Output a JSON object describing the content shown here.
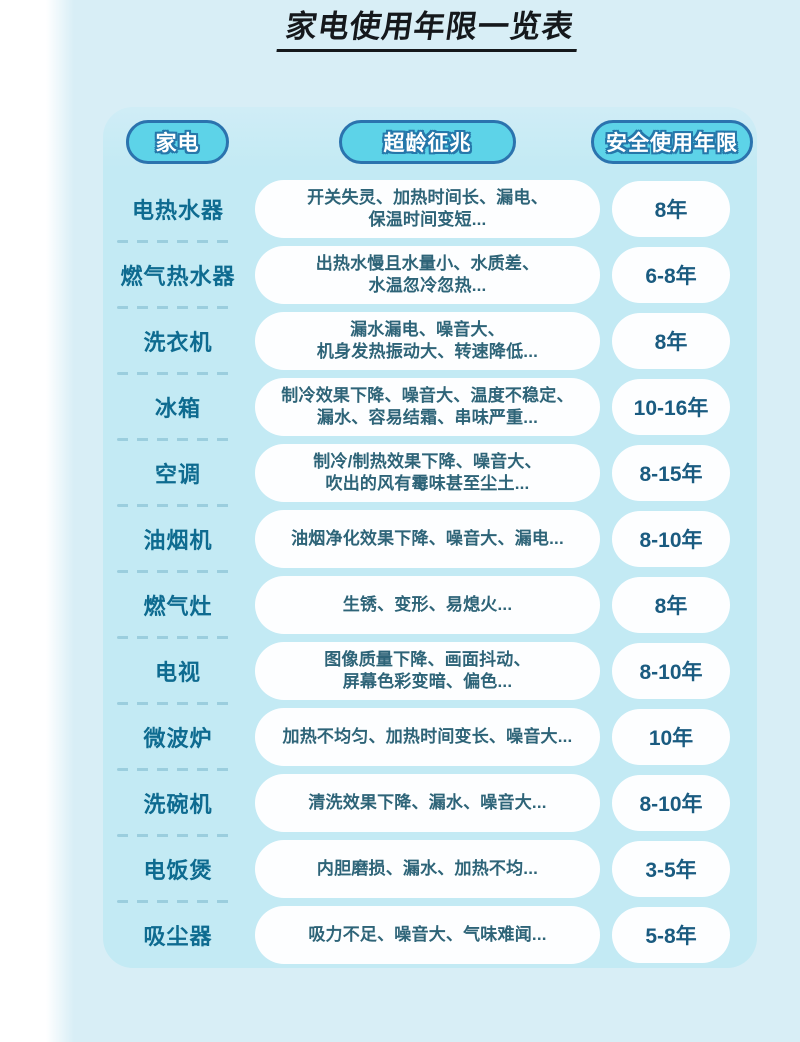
{
  "title": "家电使用年限一览表",
  "columns": {
    "appliance": "家电",
    "signs": "超龄征兆",
    "lifespan": "安全使用年限"
  },
  "rows": [
    {
      "name": "电热水器",
      "signs": "开关失灵、加热时间长、漏电、\n保温时间变短...",
      "years": "8年"
    },
    {
      "name": "燃气热水器",
      "signs": "出热水慢且水量小、水质差、\n水温忽冷忽热...",
      "years": "6-8年"
    },
    {
      "name": "洗衣机",
      "signs": "漏水漏电、噪音大、\n机身发热振动大、转速降低...",
      "years": "8年"
    },
    {
      "name": "冰箱",
      "signs": "制冷效果下降、噪音大、温度不稳定、\n漏水、容易结霜、串味严重...",
      "years": "10-16年"
    },
    {
      "name": "空调",
      "signs": "制冷/制热效果下降、噪音大、\n吹出的风有霉味甚至尘土...",
      "years": "8-15年"
    },
    {
      "name": "油烟机",
      "signs": "油烟净化效果下降、噪音大、漏电...",
      "years": "8-10年"
    },
    {
      "name": "燃气灶",
      "signs": "生锈、变形、易熄火...",
      "years": "8年"
    },
    {
      "name": "电视",
      "signs": "图像质量下降、画面抖动、\n屏幕色彩变暗、偏色...",
      "years": "8-10年"
    },
    {
      "name": "微波炉",
      "signs": "加热不均匀、加热时间变长、噪音大...",
      "years": "10年"
    },
    {
      "name": "洗碗机",
      "signs": "清洗效果下降、漏水、噪音大...",
      "years": "8-10年"
    },
    {
      "name": "电饭煲",
      "signs": "内胆磨损、漏水、加热不均...",
      "years": "3-5年"
    },
    {
      "name": "吸尘器",
      "signs": "吸力不足、噪音大、气味难闻...",
      "years": "5-8年"
    }
  ],
  "colors": {
    "page_background": "#ffffff",
    "panel_background": "#d8eef6",
    "card_background": "#c3eaf4",
    "header_pill_fill": "#5dd3e8",
    "header_pill_border": "#2b73ae",
    "header_pill_text": "#ffffff",
    "appliance_text": "#0e6b90",
    "signs_text": "#2e6478",
    "years_text": "#1a5b80",
    "dash_separator": "#9bcede",
    "title_text": "#15181c"
  }
}
